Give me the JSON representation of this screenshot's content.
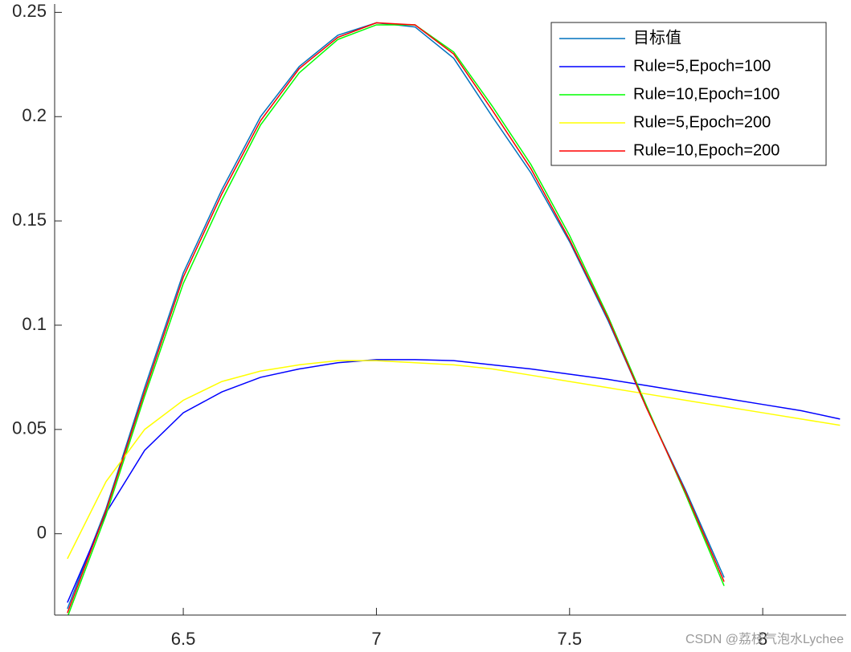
{
  "chart_data": {
    "type": "line",
    "x": [
      6.2,
      6.3,
      6.4,
      6.5,
      6.6,
      6.7,
      6.8,
      6.9,
      7.0,
      7.1,
      7.2,
      7.3,
      7.4,
      7.5,
      7.6,
      7.7,
      7.8,
      7.9,
      8.0,
      8.1,
      8.2
    ],
    "series": [
      {
        "name": "目标值",
        "color": "#0072bd",
        "values": [
          -0.036,
          0.012,
          0.07,
          0.125,
          0.165,
          0.2,
          0.224,
          0.239,
          0.245,
          0.243,
          0.228,
          0.2,
          0.173,
          0.14,
          0.102,
          0.06,
          0.021,
          -0.021,
          null,
          null,
          null
        ]
      },
      {
        "name": "Rule=5,Epoch=100",
        "color": "#0000ff",
        "values": [
          -0.033,
          0.01,
          0.04,
          0.058,
          0.068,
          0.075,
          0.079,
          0.082,
          0.0835,
          0.0835,
          0.083,
          0.081,
          0.079,
          0.0765,
          0.074,
          0.071,
          0.068,
          0.065,
          0.062,
          0.059,
          0.055
        ]
      },
      {
        "name": "Rule=10,Epoch=100",
        "color": "#00ff00",
        "values": [
          -0.04,
          0.009,
          0.066,
          0.12,
          0.16,
          0.196,
          0.221,
          0.237,
          0.244,
          0.244,
          0.231,
          0.205,
          0.177,
          0.143,
          0.104,
          0.061,
          0.019,
          -0.025,
          null,
          null,
          null
        ]
      },
      {
        "name": "Rule=5,Epoch=200",
        "color": "#ffff00",
        "values": [
          -0.012,
          0.025,
          0.05,
          0.064,
          0.073,
          0.078,
          0.081,
          0.083,
          0.083,
          0.082,
          0.081,
          0.079,
          0.076,
          0.073,
          0.07,
          0.067,
          0.064,
          0.061,
          0.058,
          0.055,
          0.052
        ]
      },
      {
        "name": "Rule=10,Epoch=200",
        "color": "#ff0000",
        "values": [
          -0.038,
          0.011,
          0.068,
          0.123,
          0.163,
          0.198,
          0.223,
          0.238,
          0.245,
          0.244,
          0.23,
          0.203,
          0.175,
          0.141,
          0.103,
          0.06,
          0.02,
          -0.023,
          null,
          null,
          null
        ]
      }
    ],
    "xlim": [
      6.167,
      8.216
    ],
    "ylim": [
      -0.039,
      0.254
    ],
    "xticks": [
      6.5,
      7,
      7.5,
      8
    ],
    "yticks": [
      0,
      0.05,
      0.1,
      0.15,
      0.2,
      0.25
    ],
    "grid": false,
    "legend": "northeast"
  },
  "watermark": "CSDN @荔枝气泡水Lychee"
}
